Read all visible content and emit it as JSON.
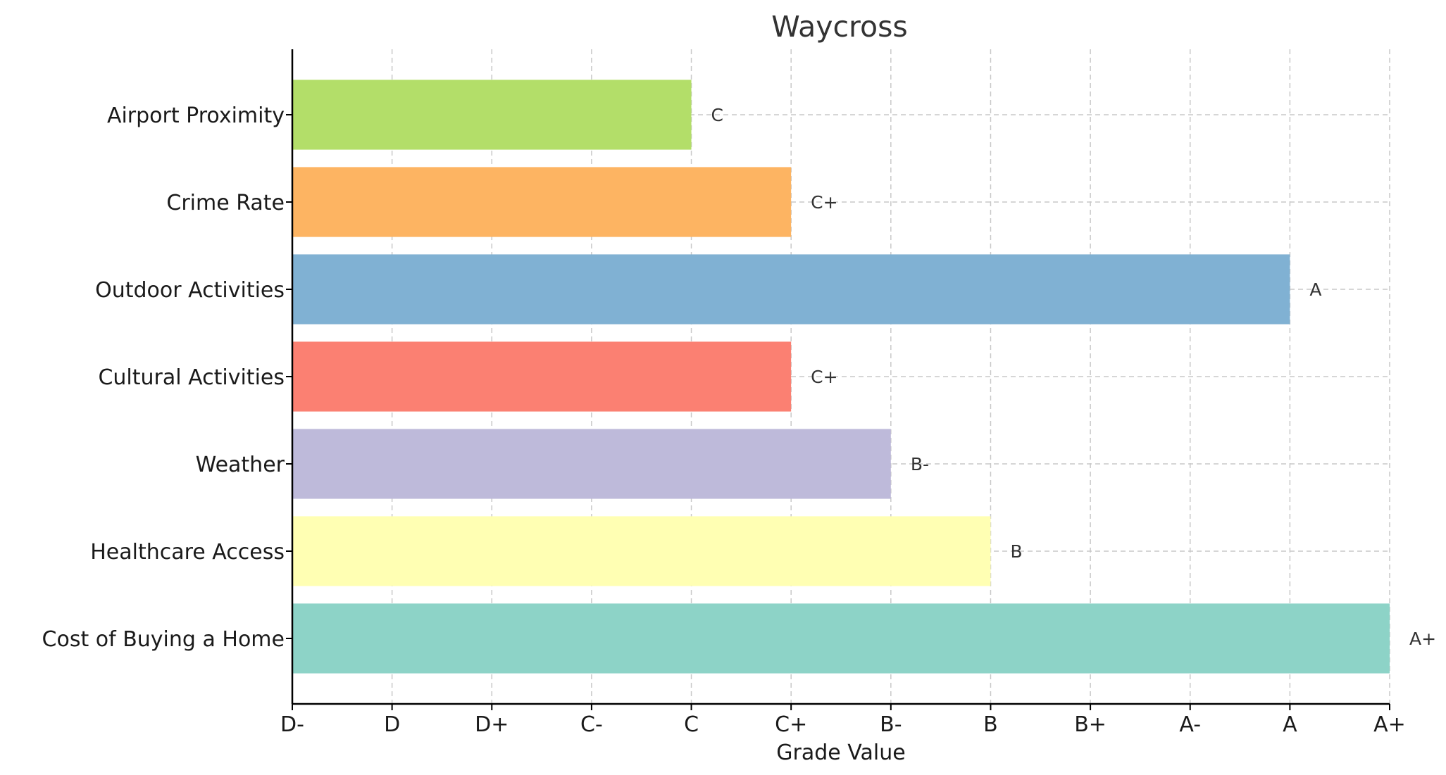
{
  "chart_data": {
    "type": "bar",
    "orientation": "horizontal",
    "title": "Waycross",
    "xlabel": "Grade Value",
    "ylabel": "",
    "grid": true,
    "x_tick_labels": [
      "D-",
      "D",
      "D+",
      "C-",
      "C",
      "C+",
      "B-",
      "B",
      "B+",
      "A-",
      "A",
      "A+"
    ],
    "xlim": [
      0,
      11
    ],
    "categories": [
      "Cost of Buying a Home",
      "Healthcare Access",
      "Weather",
      "Cultural Activities",
      "Outdoor Activities",
      "Crime Rate",
      "Airport Proximity"
    ],
    "values": [
      11,
      7,
      6,
      5,
      10,
      5,
      4
    ],
    "value_labels": [
      "A+",
      "B",
      "B-",
      "C+",
      "A",
      "C+",
      "C"
    ],
    "colors": [
      "#8dd3c7",
      "#ffffb3",
      "#bebada",
      "#fb8072",
      "#80b1d3",
      "#fdb462",
      "#b3de69"
    ]
  }
}
